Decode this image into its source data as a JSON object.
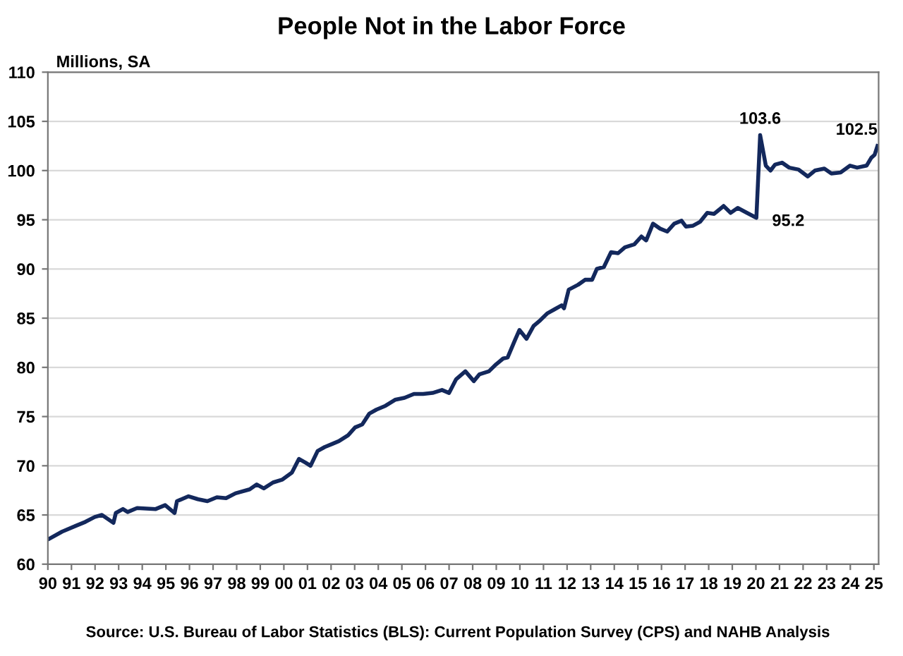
{
  "chart_data": {
    "type": "line",
    "title": "People Not in the Labor Force",
    "ylabel": "Millions, SA",
    "annotations": [
      {
        "text": "103.6",
        "x": 2020.18,
        "y": 103.6
      },
      {
        "text": "95.2",
        "x": 2020.02,
        "y": 95.2
      },
      {
        "text": "102.5",
        "x": 2025.15,
        "y": 102.5
      },
      "Source: U.S. Bureau of Labor Statistics (BLS): Current Population Survey (CPS) and NAHB Analysis"
    ],
    "series": [
      {
        "color": "#13285c",
        "x": [
          1990.0,
          1990.6,
          1991.19,
          1991.59,
          1991.99,
          1992.29,
          1992.78,
          1992.88,
          1993.18,
          1993.38,
          1993.78,
          1994.57,
          1994.97,
          1995.37,
          1995.47,
          1995.96,
          1996.36,
          1996.76,
          1997.16,
          1997.55,
          1997.95,
          1998.55,
          1998.85,
          1999.15,
          1999.54,
          1999.94,
          2000.34,
          2000.64,
          2000.93,
          2001.13,
          2001.43,
          2001.73,
          2002.03,
          2002.33,
          2002.72,
          2003.02,
          2003.32,
          2003.62,
          2003.92,
          2004.31,
          2004.71,
          2005.11,
          2005.51,
          2005.9,
          2006.3,
          2006.7,
          2007.0,
          2007.3,
          2007.69,
          2008.05,
          2008.29,
          2008.69,
          2008.99,
          2009.29,
          2009.48,
          2009.78,
          2009.98,
          2010.28,
          2010.58,
          2010.87,
          2011.17,
          2011.47,
          2011.77,
          2011.87,
          2012.07,
          2012.47,
          2012.76,
          2013.06,
          2013.26,
          2013.56,
          2013.86,
          2014.16,
          2014.45,
          2014.85,
          2015.15,
          2015.35,
          2015.64,
          2015.94,
          2016.24,
          2016.54,
          2016.85,
          2017.04,
          2017.34,
          2017.64,
          2017.94,
          2018.23,
          2018.63,
          2018.93,
          2019.23,
          2019.62,
          2020.02,
          2020.18,
          2020.42,
          2020.62,
          2020.81,
          2021.11,
          2021.41,
          2021.81,
          2022.2,
          2022.5,
          2022.9,
          2023.2,
          2023.59,
          2023.99,
          2024.29,
          2024.69,
          2024.89,
          2025.03,
          2025.15
        ],
        "values": [
          62.5,
          63.3,
          63.9,
          64.3,
          64.8,
          65.0,
          64.2,
          65.2,
          65.6,
          65.3,
          65.7,
          65.6,
          66.0,
          65.2,
          66.4,
          66.9,
          66.6,
          66.4,
          66.8,
          66.7,
          67.2,
          67.6,
          68.1,
          67.7,
          68.3,
          68.6,
          69.3,
          70.7,
          70.3,
          70.0,
          71.5,
          71.9,
          72.2,
          72.5,
          73.1,
          73.9,
          74.2,
          75.3,
          75.7,
          76.1,
          76.7,
          76.9,
          77.3,
          77.3,
          77.4,
          77.7,
          77.4,
          78.8,
          79.6,
          78.6,
          79.3,
          79.6,
          80.3,
          80.9,
          81.0,
          82.7,
          83.8,
          82.9,
          84.2,
          84.8,
          85.5,
          85.9,
          86.3,
          86.0,
          87.9,
          88.4,
          88.9,
          88.9,
          90.0,
          90.2,
          91.7,
          91.6,
          92.2,
          92.5,
          93.3,
          92.9,
          94.6,
          94.1,
          93.8,
          94.6,
          94.9,
          94.3,
          94.4,
          94.8,
          95.7,
          95.6,
          96.4,
          95.7,
          96.2,
          95.7,
          95.2,
          103.6,
          100.5,
          100.0,
          100.6,
          100.8,
          100.3,
          100.1,
          99.4,
          100.0,
          100.2,
          99.7,
          99.8,
          100.5,
          100.3,
          100.5,
          101.3,
          101.6,
          102.5
        ]
      }
    ],
    "xlim": [
      1990,
      2025.2
    ],
    "ylim": [
      60,
      110
    ],
    "xticks": [
      {
        "value": 1990,
        "label": "90"
      },
      {
        "value": 1991,
        "label": "91"
      },
      {
        "value": 1992,
        "label": "92"
      },
      {
        "value": 1993,
        "label": "93"
      },
      {
        "value": 1994,
        "label": "94"
      },
      {
        "value": 1995,
        "label": "95"
      },
      {
        "value": 1996,
        "label": "96"
      },
      {
        "value": 1997,
        "label": "97"
      },
      {
        "value": 1998,
        "label": "98"
      },
      {
        "value": 1999,
        "label": "99"
      },
      {
        "value": 2000,
        "label": "00"
      },
      {
        "value": 2001,
        "label": "01"
      },
      {
        "value": 2002,
        "label": "02"
      },
      {
        "value": 2003,
        "label": "03"
      },
      {
        "value": 2004,
        "label": "04"
      },
      {
        "value": 2005,
        "label": "05"
      },
      {
        "value": 2006,
        "label": "06"
      },
      {
        "value": 2007,
        "label": "07"
      },
      {
        "value": 2008,
        "label": "08"
      },
      {
        "value": 2009,
        "label": "09"
      },
      {
        "value": 2010,
        "label": "10"
      },
      {
        "value": 2011,
        "label": "11"
      },
      {
        "value": 2012,
        "label": "12"
      },
      {
        "value": 2013,
        "label": "13"
      },
      {
        "value": 2014,
        "label": "14"
      },
      {
        "value": 2015,
        "label": "15"
      },
      {
        "value": 2016,
        "label": "16"
      },
      {
        "value": 2017,
        "label": "17"
      },
      {
        "value": 2018,
        "label": "18"
      },
      {
        "value": 2019,
        "label": "19"
      },
      {
        "value": 2020,
        "label": "20"
      },
      {
        "value": 2021,
        "label": "21"
      },
      {
        "value": 2022,
        "label": "22"
      },
      {
        "value": 2023,
        "label": "23"
      },
      {
        "value": 2024,
        "label": "24"
      },
      {
        "value": 2025,
        "label": "25"
      }
    ],
    "yticks": [
      60,
      65,
      70,
      75,
      80,
      85,
      90,
      95,
      100,
      105,
      110
    ],
    "grid": "y",
    "marker": "none",
    "line_style": "solid"
  }
}
